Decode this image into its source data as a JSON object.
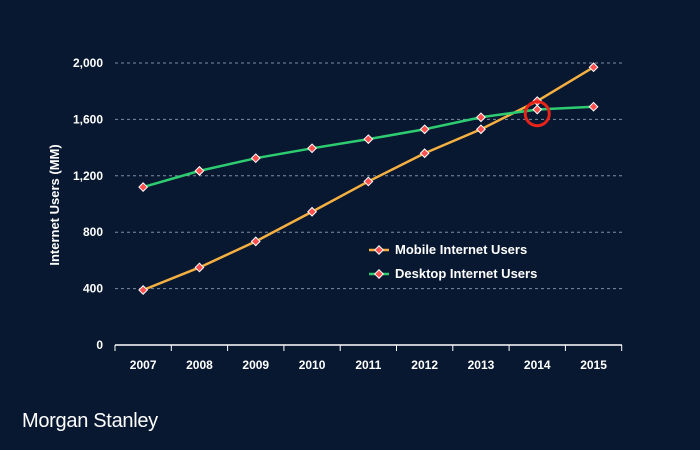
{
  "brand": {
    "name": "Morgan Stanley"
  },
  "colors": {
    "background": "#081831",
    "mobile": "#f5b041",
    "desktop": "#2ecc71",
    "marker": "#ff4f4f",
    "crossover": "#e8231a",
    "grid": "#7f8ca0",
    "axis": "#ffffff"
  },
  "chart_data": {
    "type": "line",
    "title": "",
    "xlabel": "",
    "ylabel": "Internet Users (MM)",
    "ylim": [
      0,
      2000
    ],
    "yticks": [
      "0",
      "400",
      "800",
      "1,200",
      "1,600",
      "2,000"
    ],
    "ytick_values": [
      0,
      400,
      800,
      1200,
      1600,
      2000
    ],
    "categories": [
      "2007",
      "2008",
      "2009",
      "2010",
      "2011",
      "2012",
      "2013",
      "2014",
      "2015"
    ],
    "grid": "horizontal dashed",
    "legend_position": "center-right",
    "series": [
      {
        "name": "Mobile Internet Users",
        "points": [
          {
            "x": 2007.0,
            "y": 390
          },
          {
            "x": 2008.0,
            "y": 550
          },
          {
            "x": 2009.0,
            "y": 735
          },
          {
            "x": 2010.0,
            "y": 945
          },
          {
            "x": 2011.0,
            "y": 1160
          },
          {
            "x": 2012.0,
            "y": 1360
          },
          {
            "x": 2013.0,
            "y": 1530
          },
          {
            "x": 2014.0,
            "y": 1730
          },
          {
            "x": 2015.0,
            "y": 1970
          }
        ]
      },
      {
        "name": "Desktop Internet Users",
        "points": [
          {
            "x": 2007.0,
            "y": 1120
          },
          {
            "x": 2008.0,
            "y": 1235
          },
          {
            "x": 2009.0,
            "y": 1325
          },
          {
            "x": 2010.0,
            "y": 1395
          },
          {
            "x": 2011.0,
            "y": 1460
          },
          {
            "x": 2012.0,
            "y": 1530
          },
          {
            "x": 2013.0,
            "y": 1615
          },
          {
            "x": 2014.0,
            "y": 1670
          },
          {
            "x": 2015.0,
            "y": 1690
          }
        ]
      }
    ],
    "annotations": [
      {
        "type": "circle",
        "x": 2014.0,
        "y": 1640,
        "description": "crossover highlight"
      }
    ]
  }
}
